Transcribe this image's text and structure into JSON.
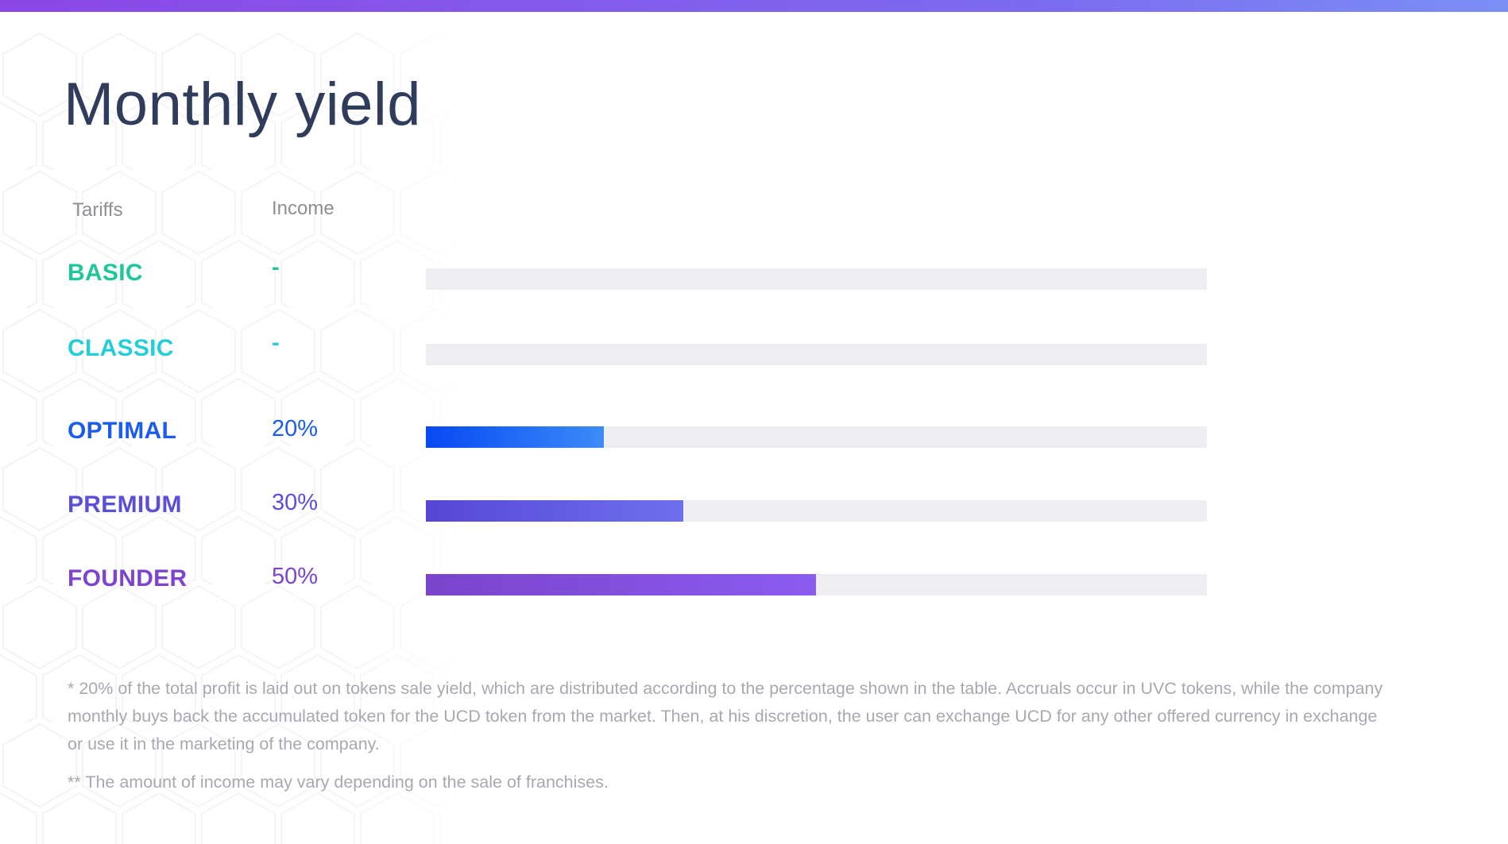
{
  "title": "Monthly yield",
  "headers": {
    "tariffs": "Tariffs",
    "income": "Income"
  },
  "chart_data": {
    "type": "bar",
    "orientation": "horizontal",
    "categories": [
      "BASIC",
      "CLASSIC",
      "OPTIMAL",
      "PREMIUM",
      "FOUNDER"
    ],
    "values": [
      null,
      null,
      20,
      30,
      50
    ],
    "value_labels": [
      "-",
      "-",
      "20%",
      "30%",
      "50%"
    ],
    "xlim": [
      0,
      100
    ],
    "colors": {
      "BASIC": "#1dc79a",
      "CLASSIC": "#24cdd8",
      "OPTIMAL": "#1a5cf0",
      "PREMIUM": "#5a4fd9",
      "FOUNDER": "#7c44d0"
    },
    "bar_gradients": {
      "OPTIMAL": [
        "#0748f2",
        "#3c8cf8"
      ],
      "PREMIUM": [
        "#5647d6",
        "#6f6fee"
      ],
      "FOUNDER": [
        "#7a44cb",
        "#8b5cf1"
      ]
    },
    "track_color": "#eeeef2"
  },
  "footnotes": [
    "* 20% of the total profit is laid out on tokens sale yield, which are distributed according to the percentage shown in the table. Accruals occur in UVC tokens, while the company monthly buys back the accumulated token for the UCD token from the market. Then, at his discretion, the user can exchange UCD for any other offered currency in exchange or use it in the marketing of the company.",
    "** The amount of income may vary depending on the sale of franchises."
  ],
  "accent_colors": {
    "top_bar_start": "#8b47e6",
    "top_bar_end": "#7b8ff5",
    "title": "#2f3c5c"
  }
}
